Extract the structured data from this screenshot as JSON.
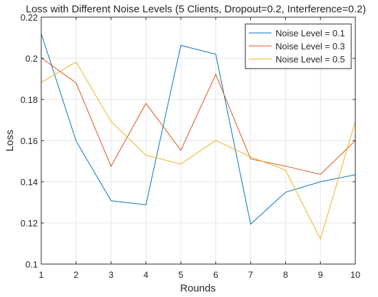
{
  "chart_data": {
    "type": "line",
    "title": "Loss with Different Noise Levels (5 Clients, Dropout=0.2, Interference=0.2)",
    "xlabel": "Rounds",
    "ylabel": "Loss",
    "x": [
      1,
      2,
      3,
      4,
      5,
      6,
      7,
      8,
      9,
      10
    ],
    "xlim": [
      1,
      10
    ],
    "ylim": [
      0.1,
      0.22
    ],
    "xticks": [
      "1",
      "2",
      "3",
      "4",
      "5",
      "6",
      "7",
      "8",
      "9",
      "10"
    ],
    "yticks": [
      "0.1",
      "0.12",
      "0.14",
      "0.16",
      "0.18",
      "0.2",
      "0.22"
    ],
    "grid": true,
    "legend_position": "top-right",
    "series": [
      {
        "name": "Noise Level = 0.1",
        "color": "#0072BD",
        "values": [
          0.212,
          0.1598,
          0.1308,
          0.1288,
          0.2063,
          0.202,
          0.1194,
          0.1349,
          0.14,
          0.1434
        ]
      },
      {
        "name": "Noise Level = 0.3",
        "color": "#D95319",
        "values": [
          0.2002,
          0.188,
          0.1475,
          0.1781,
          0.1553,
          0.1922,
          0.1511,
          0.1476,
          0.1436,
          0.16
        ]
      },
      {
        "name": "Noise Level = 0.5",
        "color": "#EDB120",
        "values": [
          0.1883,
          0.1982,
          0.1693,
          0.1529,
          0.1486,
          0.1601,
          0.1521,
          0.1457,
          0.1121,
          0.1694
        ]
      }
    ]
  }
}
